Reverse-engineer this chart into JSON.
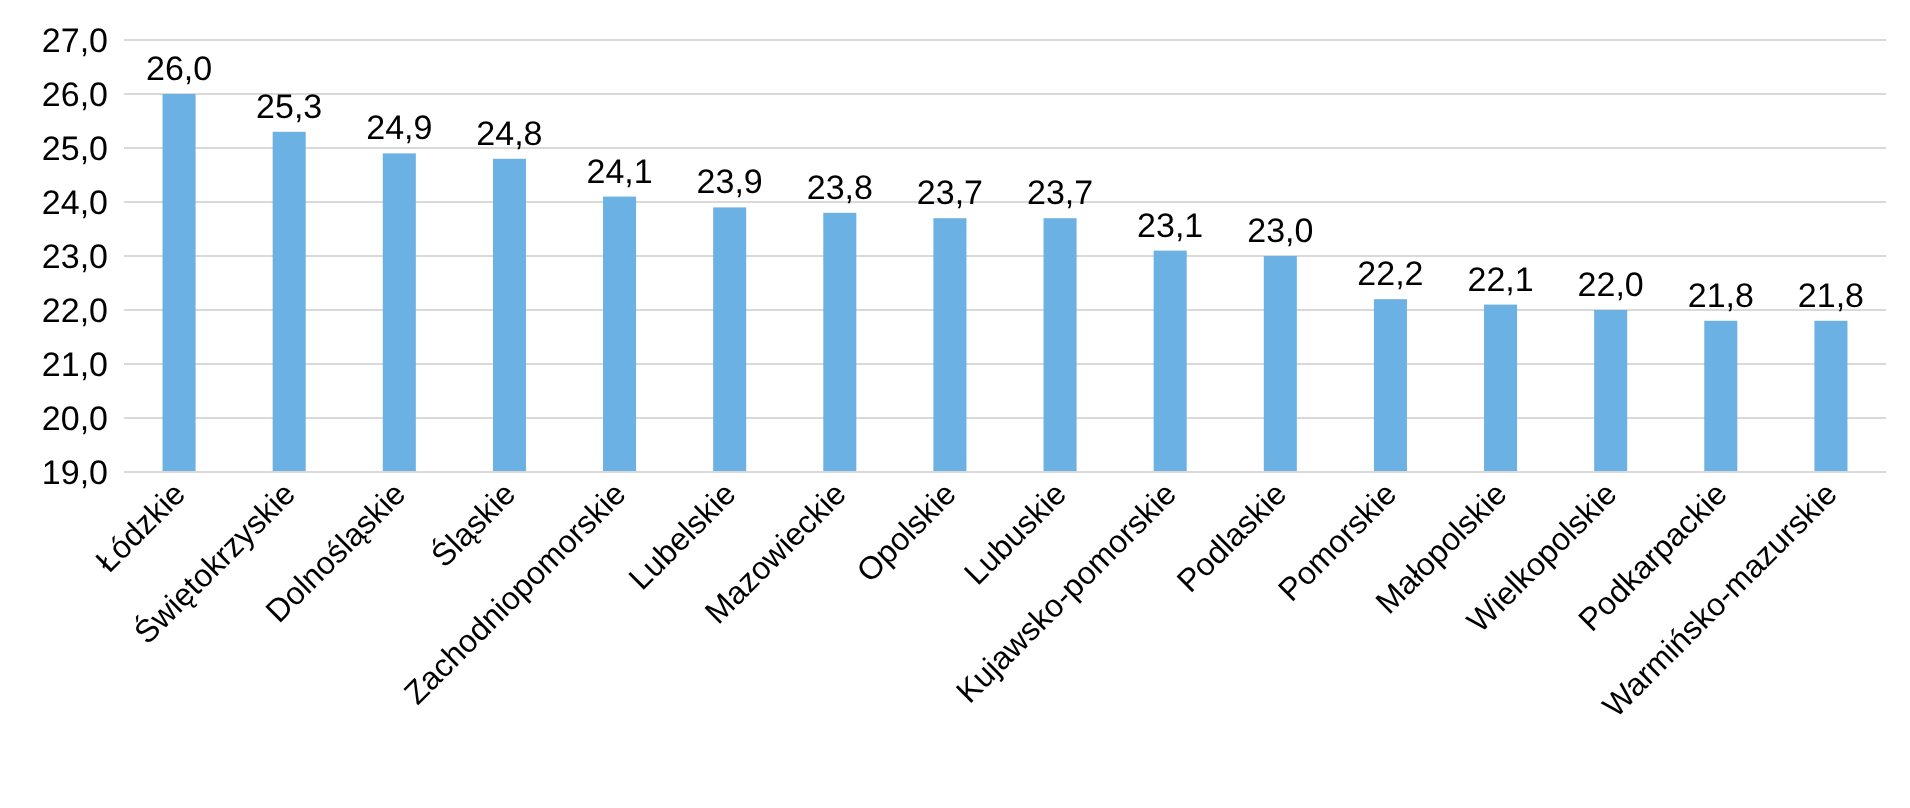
{
  "chart_data": {
    "type": "bar",
    "categories": [
      "Łódzkie",
      "Świętokrzyskie",
      "Dolnośląskie",
      "Śląskie",
      "Zachodniopomorskie",
      "Lubelskie",
      "Mazowieckie",
      "Opolskie",
      "Lubuskie",
      "Kujawsko-pomorskie",
      "Podlaskie",
      "Pomorskie",
      "Małopolskie",
      "Wielkopolskie",
      "Podkarpackie",
      "Warmińsko-mazurskie"
    ],
    "values": [
      26.0,
      25.3,
      24.9,
      24.8,
      24.1,
      23.9,
      23.8,
      23.7,
      23.7,
      23.1,
      23.0,
      22.2,
      22.1,
      22.0,
      21.8,
      21.8
    ],
    "value_labels": [
      "26,0",
      "25,3",
      "24,9",
      "24,8",
      "24,1",
      "23,9",
      "23,8",
      "23,7",
      "23,7",
      "23,1",
      "23,0",
      "22,2",
      "22,1",
      "22,0",
      "21,8",
      "21,8"
    ],
    "color": "#6cb1e3",
    "ylim": [
      19,
      27
    ],
    "yticks": [
      {
        "value": 19,
        "label": "19,0"
      },
      {
        "value": 20,
        "label": "20,0"
      },
      {
        "value": 21,
        "label": "21,0"
      },
      {
        "value": 22,
        "label": "22,0"
      },
      {
        "value": 23,
        "label": "23,0"
      },
      {
        "value": 24,
        "label": "24,0"
      },
      {
        "value": 25,
        "label": "25,0"
      },
      {
        "value": 26,
        "label": "26,0"
      },
      {
        "value": 27,
        "label": "27,0"
      }
    ],
    "grid": true
  }
}
